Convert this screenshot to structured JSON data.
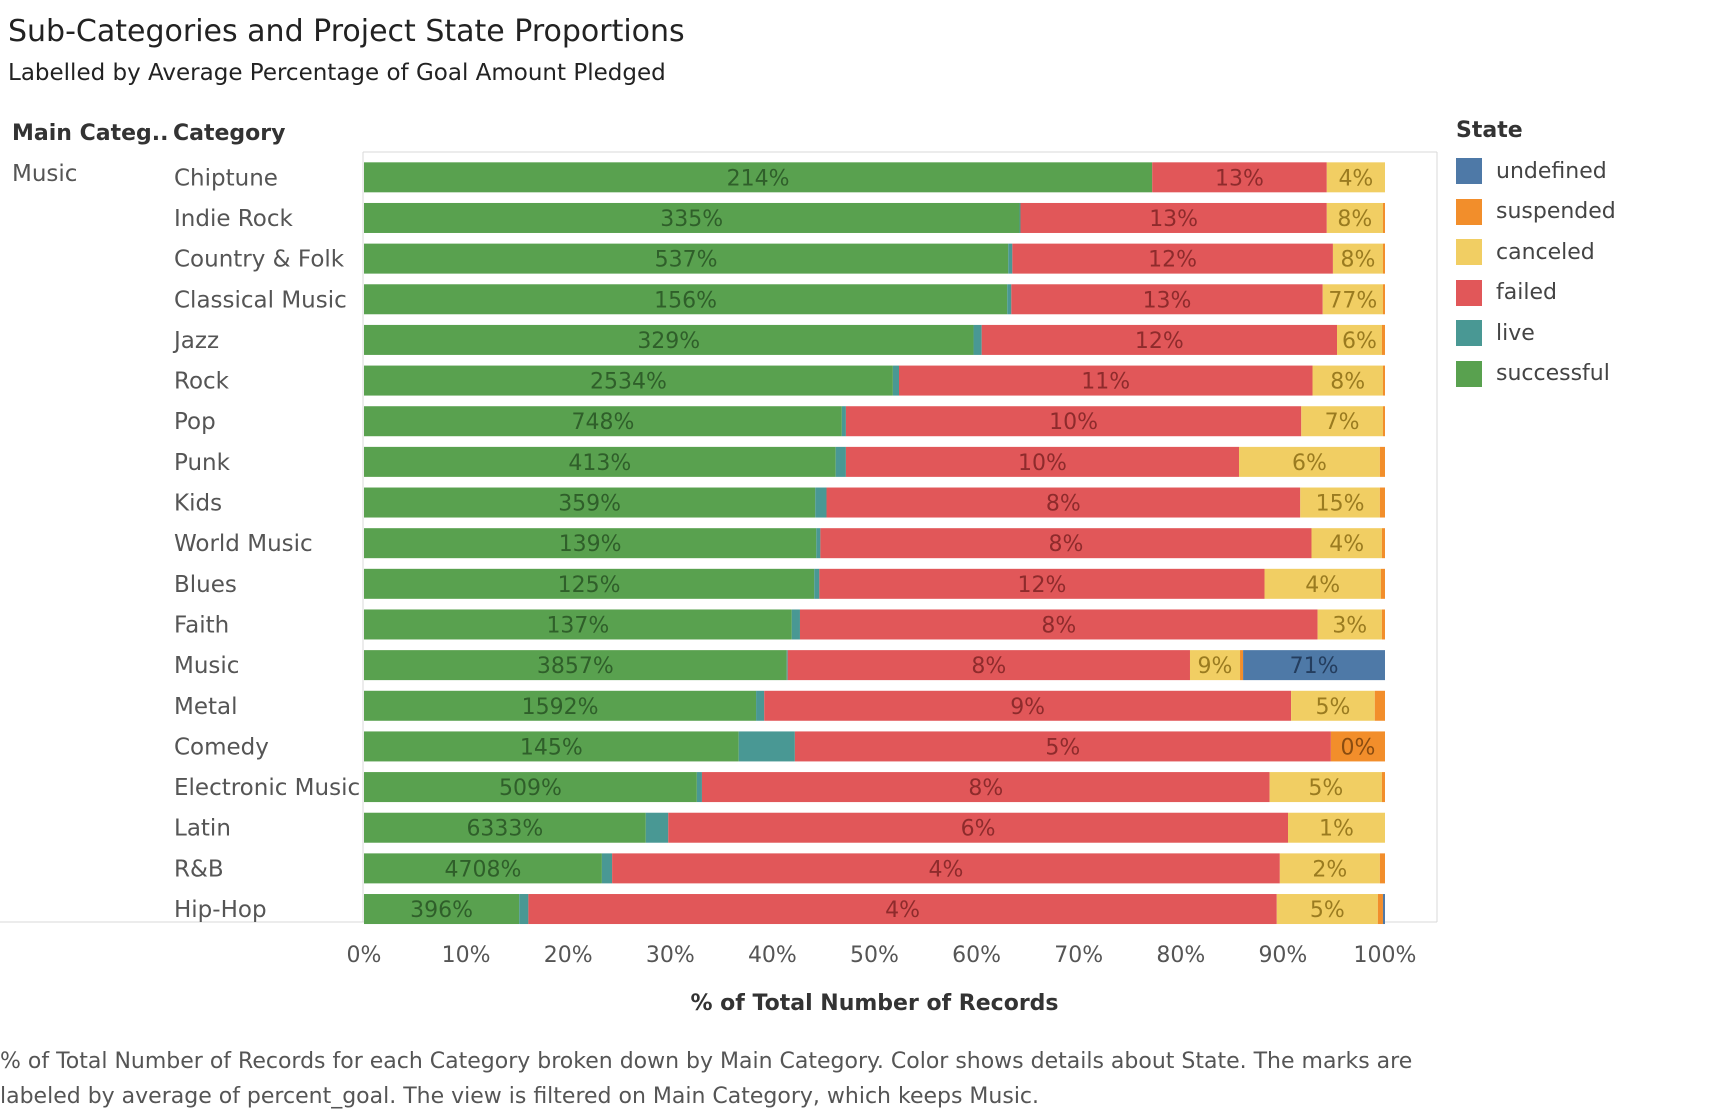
{
  "title": "Sub-Categories and Project State Proportions",
  "subtitle": "Labelled by Average Percentage of Goal Amount Pledged",
  "headers": {
    "main_category": "Main Categ..",
    "category": "Category"
  },
  "main_category_value": "Music",
  "legend": {
    "title": "State",
    "items": [
      {
        "label": "undefined",
        "color": "#4e79a7"
      },
      {
        "label": "suspended",
        "color": "#f28e2b"
      },
      {
        "label": "canceled",
        "color": "#f1ce63"
      },
      {
        "label": "failed",
        "color": "#e15759"
      },
      {
        "label": "live",
        "color": "#499894"
      },
      {
        "label": "successful",
        "color": "#59a14f"
      }
    ]
  },
  "caption": "% of Total Number of Records for each Category broken down by Main Category.  Color shows details about State.  The marks are labeled by average of percent_goal. The view is filtered on Main Category, which keeps Music.",
  "chart_data": {
    "type": "bar",
    "orientation": "horizontal",
    "stacked": "100%",
    "xlabel": "% of Total Number of Records",
    "xlim": [
      0,
      100
    ],
    "xticks": [
      "0%",
      "10%",
      "20%",
      "30%",
      "40%",
      "50%",
      "60%",
      "70%",
      "80%",
      "90%",
      "100%"
    ],
    "grid": false,
    "legend_position": "right",
    "stack_order": [
      "successful",
      "live",
      "failed",
      "canceled",
      "suspended",
      "undefined"
    ],
    "colors": {
      "successful": "#59a14f",
      "live": "#499894",
      "failed": "#e15759",
      "canceled": "#f1ce63",
      "suspended": "#f28e2b",
      "undefined": "#4e79a7"
    },
    "label_colors": {
      "successful": "#2f5f2a",
      "live": "#2f5f2a",
      "failed": "#8e2b2c",
      "canceled": "#9a7b20",
      "suspended": "#8a4c10",
      "undefined": "#243d5e"
    },
    "categories": [
      "Chiptune",
      "Indie Rock",
      "Country & Folk",
      "Classical Music",
      "Jazz",
      "Rock",
      "Pop",
      "Punk",
      "Kids",
      "World Music",
      "Blues",
      "Faith",
      "Music",
      "Metal",
      "Comedy",
      "Electronic Music",
      "Latin",
      "R&B",
      "Hip-Hop"
    ],
    "rows": [
      {
        "category": "Chiptune",
        "segments": [
          {
            "state": "successful",
            "value": 77.2,
            "label": "214%"
          },
          {
            "state": "failed",
            "value": 17.1,
            "label": "13%"
          },
          {
            "state": "canceled",
            "value": 5.7,
            "label": "4%"
          }
        ]
      },
      {
        "category": "Indie Rock",
        "segments": [
          {
            "state": "successful",
            "value": 64.2,
            "label": "335%"
          },
          {
            "state": "live",
            "value": 0.1
          },
          {
            "state": "failed",
            "value": 30.0,
            "label": "13%"
          },
          {
            "state": "canceled",
            "value": 5.5,
            "label": "8%"
          },
          {
            "state": "suspended",
            "value": 0.2
          }
        ]
      },
      {
        "category": "Country & Folk",
        "segments": [
          {
            "state": "successful",
            "value": 63.1,
            "label": "537%"
          },
          {
            "state": "live",
            "value": 0.4
          },
          {
            "state": "failed",
            "value": 31.4,
            "label": "12%"
          },
          {
            "state": "canceled",
            "value": 4.9,
            "label": "8%"
          },
          {
            "state": "suspended",
            "value": 0.2
          }
        ]
      },
      {
        "category": "Classical Music",
        "segments": [
          {
            "state": "successful",
            "value": 63.0,
            "label": "156%"
          },
          {
            "state": "live",
            "value": 0.4
          },
          {
            "state": "failed",
            "value": 30.5,
            "label": "13%"
          },
          {
            "state": "canceled",
            "value": 5.9,
            "label": "77%"
          },
          {
            "state": "suspended",
            "value": 0.2
          }
        ]
      },
      {
        "category": "Jazz",
        "segments": [
          {
            "state": "successful",
            "value": 59.7,
            "label": "329%"
          },
          {
            "state": "live",
            "value": 0.8
          },
          {
            "state": "failed",
            "value": 34.8,
            "label": "12%"
          },
          {
            "state": "canceled",
            "value": 4.4,
            "label": "6%"
          },
          {
            "state": "suspended",
            "value": 0.3
          }
        ]
      },
      {
        "category": "Rock",
        "segments": [
          {
            "state": "successful",
            "value": 51.8,
            "label": "2534%"
          },
          {
            "state": "live",
            "value": 0.6
          },
          {
            "state": "failed",
            "value": 40.5,
            "label": "11%"
          },
          {
            "state": "canceled",
            "value": 6.9,
            "label": "8%"
          },
          {
            "state": "suspended",
            "value": 0.2
          }
        ]
      },
      {
        "category": "Pop",
        "segments": [
          {
            "state": "successful",
            "value": 46.8,
            "label": "748%"
          },
          {
            "state": "live",
            "value": 0.4
          },
          {
            "state": "failed",
            "value": 44.6,
            "label": "10%"
          },
          {
            "state": "canceled",
            "value": 8.0,
            "label": "7%"
          },
          {
            "state": "suspended",
            "value": 0.2
          }
        ]
      },
      {
        "category": "Punk",
        "segments": [
          {
            "state": "successful",
            "value": 46.2,
            "label": "413%"
          },
          {
            "state": "live",
            "value": 1.0
          },
          {
            "state": "failed",
            "value": 38.5,
            "label": "10%"
          },
          {
            "state": "canceled",
            "value": 13.8,
            "label": "6%"
          },
          {
            "state": "suspended",
            "value": 0.5
          }
        ]
      },
      {
        "category": "Kids",
        "segments": [
          {
            "state": "successful",
            "value": 44.2,
            "label": "359%"
          },
          {
            "state": "live",
            "value": 1.1
          },
          {
            "state": "failed",
            "value": 46.4,
            "label": "8%"
          },
          {
            "state": "canceled",
            "value": 7.8,
            "label": "15%"
          },
          {
            "state": "suspended",
            "value": 0.5
          }
        ]
      },
      {
        "category": "World Music",
        "segments": [
          {
            "state": "successful",
            "value": 44.3,
            "label": "139%"
          },
          {
            "state": "live",
            "value": 0.4
          },
          {
            "state": "failed",
            "value": 48.1,
            "label": "8%"
          },
          {
            "state": "canceled",
            "value": 6.9,
            "label": "4%"
          },
          {
            "state": "suspended",
            "value": 0.3
          }
        ]
      },
      {
        "category": "Blues",
        "segments": [
          {
            "state": "successful",
            "value": 44.1,
            "label": "125%"
          },
          {
            "state": "live",
            "value": 0.5
          },
          {
            "state": "failed",
            "value": 43.6,
            "label": "12%"
          },
          {
            "state": "canceled",
            "value": 11.4,
            "label": "4%"
          },
          {
            "state": "suspended",
            "value": 0.4
          }
        ]
      },
      {
        "category": "Faith",
        "segments": [
          {
            "state": "successful",
            "value": 41.9,
            "label": "137%"
          },
          {
            "state": "live",
            "value": 0.8
          },
          {
            "state": "failed",
            "value": 50.7,
            "label": "8%"
          },
          {
            "state": "canceled",
            "value": 6.3,
            "label": "3%"
          },
          {
            "state": "suspended",
            "value": 0.3
          }
        ]
      },
      {
        "category": "Music",
        "segments": [
          {
            "state": "successful",
            "value": 41.4,
            "label": "3857%"
          },
          {
            "state": "live",
            "value": 0.1
          },
          {
            "state": "failed",
            "value": 39.4,
            "label": "8%"
          },
          {
            "state": "canceled",
            "value": 4.9,
            "label": "9%"
          },
          {
            "state": "suspended",
            "value": 0.3
          },
          {
            "state": "undefined",
            "value": 13.9,
            "label": "71%"
          }
        ]
      },
      {
        "category": "Metal",
        "segments": [
          {
            "state": "successful",
            "value": 38.4,
            "label": "1592%"
          },
          {
            "state": "live",
            "value": 0.8
          },
          {
            "state": "failed",
            "value": 51.6,
            "label": "9%"
          },
          {
            "state": "canceled",
            "value": 8.2,
            "label": "5%"
          },
          {
            "state": "suspended",
            "value": 1.0
          }
        ]
      },
      {
        "category": "Comedy",
        "segments": [
          {
            "state": "successful",
            "value": 36.7,
            "label": "145%"
          },
          {
            "state": "live",
            "value": 5.5
          },
          {
            "state": "failed",
            "value": 52.5,
            "label": "5%"
          },
          {
            "state": "suspended",
            "value": 5.3,
            "label": "0%"
          }
        ]
      },
      {
        "category": "Electronic Music",
        "segments": [
          {
            "state": "successful",
            "value": 32.6,
            "label": "509%"
          },
          {
            "state": "live",
            "value": 0.5
          },
          {
            "state": "failed",
            "value": 55.6,
            "label": "8%"
          },
          {
            "state": "canceled",
            "value": 11.0,
            "label": "5%"
          },
          {
            "state": "suspended",
            "value": 0.3
          }
        ]
      },
      {
        "category": "Latin",
        "segments": [
          {
            "state": "successful",
            "value": 27.6,
            "label": "6333%"
          },
          {
            "state": "live",
            "value": 2.2
          },
          {
            "state": "failed",
            "value": 60.7,
            "label": "6%"
          },
          {
            "state": "canceled",
            "value": 9.5,
            "label": "1%"
          }
        ]
      },
      {
        "category": "R&B",
        "segments": [
          {
            "state": "successful",
            "value": 23.3,
            "label": "4708%"
          },
          {
            "state": "live",
            "value": 1.0
          },
          {
            "state": "failed",
            "value": 65.4,
            "label": "4%"
          },
          {
            "state": "canceled",
            "value": 9.8,
            "label": "2%"
          },
          {
            "state": "suspended",
            "value": 0.5
          }
        ]
      },
      {
        "category": "Hip-Hop",
        "segments": [
          {
            "state": "successful",
            "value": 15.2,
            "label": "396%"
          },
          {
            "state": "live",
            "value": 0.9
          },
          {
            "state": "failed",
            "value": 73.3,
            "label": "4%"
          },
          {
            "state": "canceled",
            "value": 9.9,
            "label": "5%"
          },
          {
            "state": "suspended",
            "value": 0.5
          },
          {
            "state": "undefined",
            "value": 0.2
          }
        ]
      }
    ]
  }
}
